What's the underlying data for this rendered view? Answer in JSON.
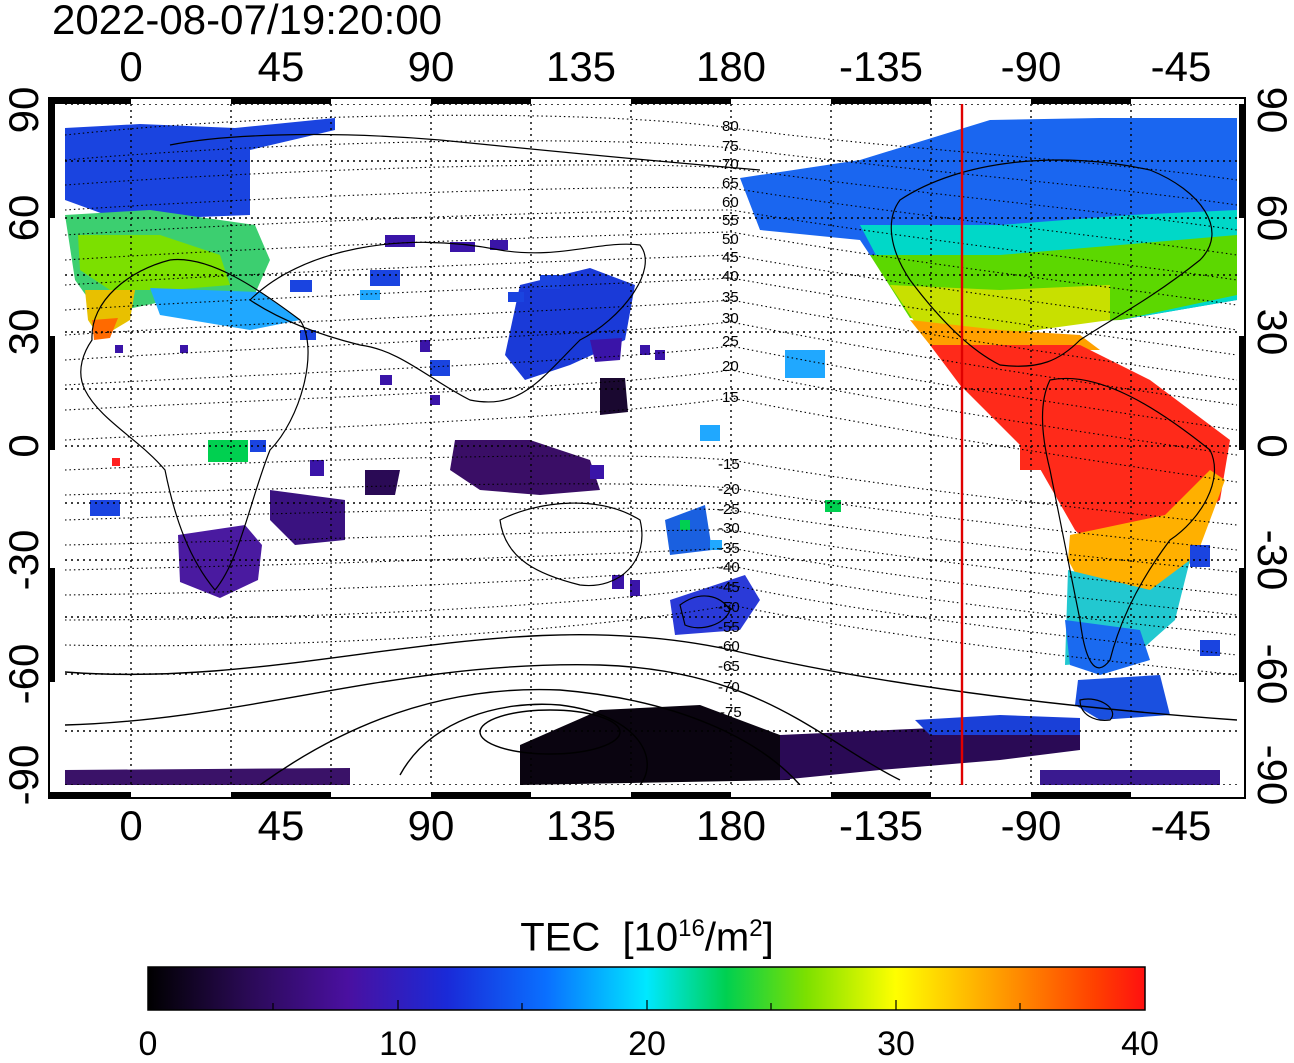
{
  "timestamp": "2022-08-07/19:20:00",
  "lon_labels": [
    "0",
    "45",
    "90",
    "135",
    "180",
    "-135",
    "-90",
    "-45"
  ],
  "lat_labels": [
    "90",
    "60",
    "30",
    "0",
    "-30",
    "-60",
    "-90"
  ],
  "contour_labels": {
    "north": [
      "80",
      "75",
      "70",
      "65",
      "60",
      "55",
      "50",
      "45",
      "40",
      "35",
      "30",
      "25",
      "20",
      "15"
    ],
    "south": [
      "-15",
      "-20",
      "-25",
      "-30",
      "-35",
      "-40",
      "-45",
      "-50",
      "-55",
      "-60",
      "-65",
      "-70",
      "-75"
    ]
  },
  "colorbar": {
    "title_main": "TEC",
    "title_unit_open": "[10",
    "title_unit_exp": "16",
    "title_unit_mid": "/m",
    "title_unit_exp2": "2",
    "title_unit_close": "]",
    "ticks": [
      "0",
      "10",
      "20",
      "30",
      "40"
    ],
    "min": 0,
    "max": 40,
    "colors": [
      "#000000",
      "#2a0a55",
      "#4a10a0",
      "#1a2ad8",
      "#0a70ff",
      "#00e8ff",
      "#00d050",
      "#7ce000",
      "#ffff00",
      "#ffa000",
      "#ff4000",
      "#ff1010"
    ]
  },
  "terminator_color": "#e00000",
  "terminator_lon": -114
}
